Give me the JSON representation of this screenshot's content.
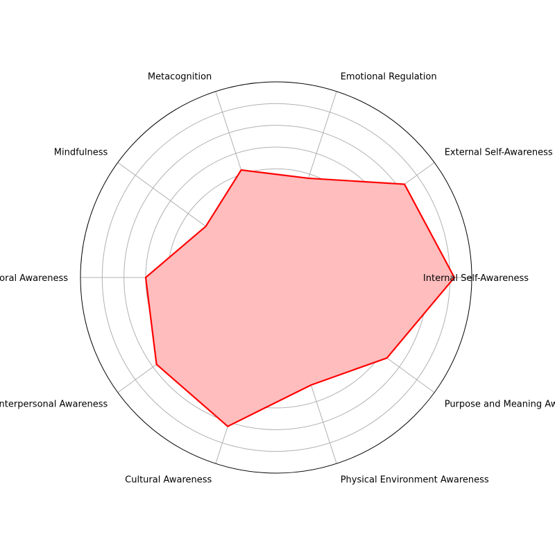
{
  "chart_data": {
    "type": "radar",
    "title": "",
    "categories": [
      "Internal Self-Awareness",
      "External Self-Awareness",
      "Emotional Regulation",
      "Metacognition",
      "Mindfulness",
      "Behavioral Awareness",
      "Interpersonal Awareness",
      "Cultural Awareness",
      "Physical Environment Awareness",
      "Purpose and Meaning Awareness"
    ],
    "series": [
      {
        "values": [
          8.2,
          7.3,
          4.8,
          5.2,
          4.0,
          6.0,
          6.8,
          7.2,
          5.2,
          6.3
        ],
        "line_color": "#ff0000",
        "fill_color": "#ffbdbd"
      }
    ],
    "rlim": [
      0,
      9
    ],
    "radial_gridlines": [
      1,
      2,
      3,
      4,
      5,
      6,
      7,
      8
    ],
    "radial_tick_labels_shown": false,
    "grid": true,
    "legend": "none"
  }
}
